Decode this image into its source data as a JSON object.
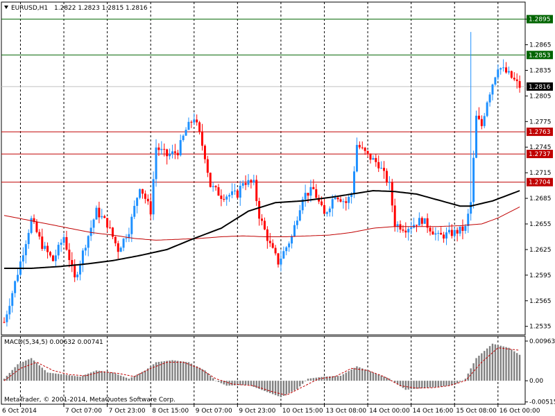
{
  "header": {
    "symbol": "EURUSD,H1",
    "ohlc": "1.2822 1.2823 1.2815 1.2816",
    "arrow_icon": "triangle-down-icon"
  },
  "copyright": "MetaTrader, © 2001-2014, MetaQuotes Software Corp.",
  "colors": {
    "background": "#ffffff",
    "bull": "#1e90ff",
    "bear": "#ff0000",
    "ma_fast": "#c00000",
    "ma_slow": "#000000",
    "hline_green": "#006400",
    "hline_red": "#c00000",
    "price_line": "#c0c0c0",
    "macd_hist": "#808080",
    "macd_signal": "#c00000"
  },
  "chart_data": [
    {
      "type": "candlestick",
      "title": "EURUSD,H1",
      "ylim": [
        1.2525,
        1.2915
      ],
      "y_ticks": [
        "1.2895",
        "1.2865",
        "1.2835",
        "1.2805",
        "1.2775",
        "1.2745",
        "1.2715",
        "1.2685",
        "1.2655",
        "1.2625",
        "1.2595",
        "1.2565",
        "1.2535"
      ],
      "x_labels": [
        "6 Oct 2014",
        "7 Oct 07:00",
        "7 Oct 23:00",
        "8 Oct 15:00",
        "9 Oct 07:00",
        "9 Oct 23:00",
        "10 Oct 15:00",
        "13 Oct 08:00",
        "14 Oct 00:00",
        "14 Oct 16:00",
        "15 Oct 08:00",
        "16 Oct 00:00"
      ],
      "current_price": {
        "value": 1.2816,
        "label": "1.2816"
      },
      "levels": [
        {
          "value": 1.2895,
          "label": "1.2895",
          "color": "#006400"
        },
        {
          "value": 1.2853,
          "label": "1.2853",
          "color": "#006400"
        },
        {
          "value": 1.2763,
          "label": "1.2763",
          "color": "#c00000"
        },
        {
          "value": 1.2737,
          "label": "1.2737",
          "color": "#c00000"
        },
        {
          "value": 1.2704,
          "label": "1.2704",
          "color": "#c00000"
        }
      ],
      "close_path": [
        [
          0,
          1.254
        ],
        [
          5,
          1.2598
        ],
        [
          10,
          1.266
        ],
        [
          14,
          1.263
        ],
        [
          18,
          1.2612
        ],
        [
          22,
          1.264
        ],
        [
          26,
          1.259
        ],
        [
          30,
          1.2632
        ],
        [
          34,
          1.267
        ],
        [
          38,
          1.2655
        ],
        [
          42,
          1.2625
        ],
        [
          46,
          1.2648
        ],
        [
          50,
          1.27
        ],
        [
          54,
          1.267
        ],
        [
          56,
          1.2745
        ],
        [
          60,
          1.2735
        ],
        [
          64,
          1.274
        ],
        [
          67,
          1.2765
        ],
        [
          70,
          1.278
        ],
        [
          72,
          1.276
        ],
        [
          74,
          1.2735
        ],
        [
          76,
          1.27
        ],
        [
          80,
          1.2688
        ],
        [
          86,
          1.269
        ],
        [
          88,
          1.2705
        ],
        [
          92,
          1.2702
        ],
        [
          94,
          1.2665
        ],
        [
          98,
          1.263
        ],
        [
          101,
          1.261
        ],
        [
          106,
          1.264
        ],
        [
          110,
          1.2688
        ],
        [
          114,
          1.2695
        ],
        [
          118,
          1.2665
        ],
        [
          122,
          1.269
        ],
        [
          126,
          1.268
        ],
        [
          128,
          1.269
        ],
        [
          130,
          1.2748
        ],
        [
          134,
          1.2735
        ],
        [
          138,
          1.2725
        ],
        [
          142,
          1.27
        ],
        [
          144,
          1.2655
        ],
        [
          148,
          1.265
        ],
        [
          154,
          1.266
        ],
        [
          160,
          1.264
        ],
        [
          166,
          1.2645
        ],
        [
          170,
          1.265
        ],
        [
          172,
          1.268
        ],
        [
          174,
          1.278
        ],
        [
          176,
          1.277
        ],
        [
          178,
          1.28
        ],
        [
          182,
          1.284
        ],
        [
          186,
          1.283
        ],
        [
          190,
          1.2816
        ]
      ],
      "ma_fast": [
        [
          0,
          1.2665
        ],
        [
          8,
          1.266
        ],
        [
          16,
          1.2655
        ],
        [
          24,
          1.265
        ],
        [
          32,
          1.2645
        ],
        [
          40,
          1.2642
        ],
        [
          48,
          1.2638
        ],
        [
          56,
          1.2636
        ],
        [
          64,
          1.2637
        ],
        [
          72,
          1.2638
        ],
        [
          80,
          1.264
        ],
        [
          88,
          1.2641
        ],
        [
          96,
          1.264
        ],
        [
          104,
          1.264
        ],
        [
          112,
          1.2641
        ],
        [
          120,
          1.2642
        ],
        [
          128,
          1.2645
        ],
        [
          136,
          1.265
        ],
        [
          144,
          1.2652
        ],
        [
          152,
          1.2652
        ],
        [
          160,
          1.2652
        ],
        [
          168,
          1.2653
        ],
        [
          176,
          1.2655
        ],
        [
          182,
          1.2662
        ],
        [
          190,
          1.2675
        ]
      ],
      "ma_slow": [
        [
          0,
          1.2603
        ],
        [
          10,
          1.2603
        ],
        [
          20,
          1.2605
        ],
        [
          30,
          1.2608
        ],
        [
          40,
          1.2612
        ],
        [
          50,
          1.2618
        ],
        [
          60,
          1.2625
        ],
        [
          70,
          1.2638
        ],
        [
          80,
          1.265
        ],
        [
          90,
          1.267
        ],
        [
          100,
          1.268
        ],
        [
          110,
          1.2682
        ],
        [
          120,
          1.2686
        ],
        [
          128,
          1.269
        ],
        [
          136,
          1.2694
        ],
        [
          144,
          1.2693
        ],
        [
          152,
          1.269
        ],
        [
          160,
          1.2683
        ],
        [
          168,
          1.2676
        ],
        [
          172,
          1.2676
        ],
        [
          180,
          1.2682
        ],
        [
          190,
          1.2694
        ]
      ]
    },
    {
      "type": "bar",
      "title": "MACD(5,34,5) 0.00632 0.00741",
      "ylim": [
        -0.0057,
        0.0108
      ],
      "y_ticks": [
        "0.00963",
        "0.00",
        "-0.00515"
      ],
      "hist_path": [
        [
          0,
          0.0005
        ],
        [
          5,
          0.004
        ],
        [
          10,
          0.0055
        ],
        [
          16,
          0.002
        ],
        [
          22,
          0.0015
        ],
        [
          28,
          0.001
        ],
        [
          34,
          0.0025
        ],
        [
          40,
          0.002
        ],
        [
          46,
          0.0005
        ],
        [
          52,
          0.0025
        ],
        [
          56,
          0.0045
        ],
        [
          62,
          0.005
        ],
        [
          68,
          0.0045
        ],
        [
          74,
          0.0025
        ],
        [
          78,
          0.0
        ],
        [
          82,
          -0.0012
        ],
        [
          90,
          -0.001
        ],
        [
          96,
          -0.0025
        ],
        [
          102,
          -0.004
        ],
        [
          108,
          -0.002
        ],
        [
          112,
          0.0005
        ],
        [
          118,
          0.001
        ],
        [
          124,
          0.0012
        ],
        [
          130,
          0.0035
        ],
        [
          136,
          0.002
        ],
        [
          142,
          0.0005
        ],
        [
          148,
          -0.0022
        ],
        [
          154,
          -0.0018
        ],
        [
          160,
          -0.0015
        ],
        [
          166,
          -0.001
        ],
        [
          170,
          0.0005
        ],
        [
          174,
          0.0055
        ],
        [
          180,
          0.009
        ],
        [
          186,
          0.008
        ],
        [
          190,
          0.0063
        ]
      ],
      "signal_path": [
        [
          0,
          0.0
        ],
        [
          6,
          0.003
        ],
        [
          12,
          0.0045
        ],
        [
          18,
          0.0025
        ],
        [
          24,
          0.0015
        ],
        [
          30,
          0.0012
        ],
        [
          36,
          0.0022
        ],
        [
          42,
          0.0018
        ],
        [
          48,
          0.001
        ],
        [
          54,
          0.003
        ],
        [
          60,
          0.0045
        ],
        [
          66,
          0.0045
        ],
        [
          72,
          0.003
        ],
        [
          78,
          0.0005
        ],
        [
          84,
          -0.0008
        ],
        [
          92,
          -0.0012
        ],
        [
          98,
          -0.0025
        ],
        [
          104,
          -0.0035
        ],
        [
          110,
          -0.0015
        ],
        [
          116,
          0.0005
        ],
        [
          122,
          0.001
        ],
        [
          128,
          0.003
        ],
        [
          134,
          0.0025
        ],
        [
          140,
          0.001
        ],
        [
          146,
          -0.0012
        ],
        [
          152,
          -0.0018
        ],
        [
          158,
          -0.0017
        ],
        [
          164,
          -0.0012
        ],
        [
          170,
          0.0
        ],
        [
          176,
          0.0045
        ],
        [
          182,
          0.008
        ],
        [
          190,
          0.0074
        ]
      ]
    }
  ]
}
